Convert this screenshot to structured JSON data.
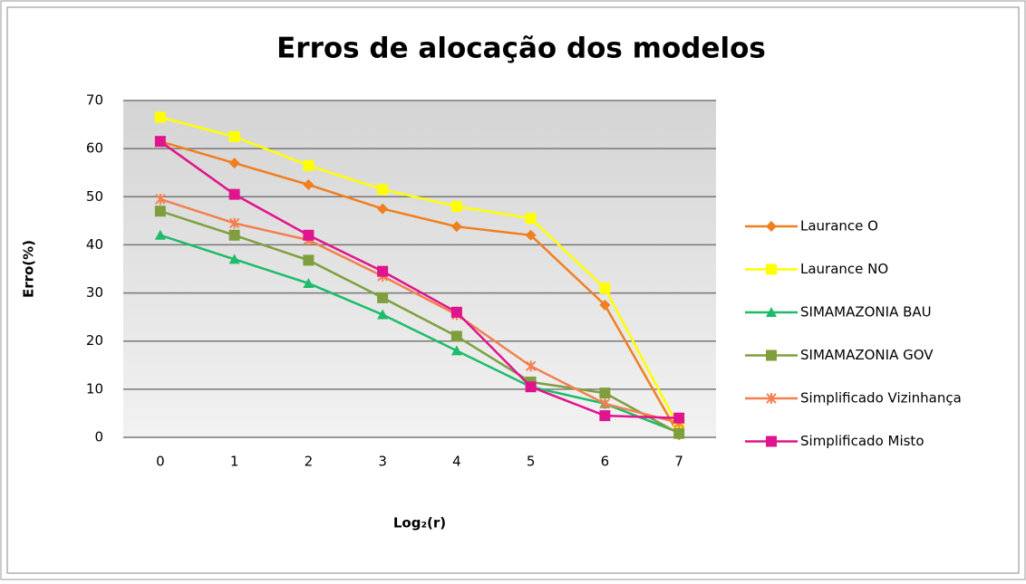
{
  "chart_data": {
    "type": "line",
    "title": "Erros de alocação dos modelos",
    "x_label": "Log₂(r)",
    "y_label": "Erro(%)",
    "categories": [
      "0",
      "1",
      "2",
      "3",
      "4",
      "5",
      "6",
      "7"
    ],
    "series": [
      {
        "name": "Laurance O",
        "color": "#f07f1f",
        "marker": "diamond",
        "values": [
          61.5,
          57,
          52.5,
          47.5,
          43.8,
          42,
          27.5,
          0.5
        ]
      },
      {
        "name": "Laurance NO",
        "color": "#ffff00",
        "marker": "square",
        "values": [
          66.5,
          62.5,
          56.5,
          51.5,
          48,
          45.5,
          31,
          2
        ]
      },
      {
        "name": "SIMAMAZONIA BAU",
        "color": "#1dbb6a",
        "marker": "triangle",
        "values": [
          42,
          37,
          32,
          25.5,
          18,
          10.5,
          7,
          1
        ]
      },
      {
        "name": "SIMAMAZONIA GOV",
        "color": "#7f9f3f",
        "marker": "square",
        "values": [
          47,
          42,
          36.8,
          29,
          21,
          11.5,
          9.2,
          0.8
        ]
      },
      {
        "name": "Simplificado Vizinhança",
        "color": "#f47f4f",
        "marker": "star",
        "values": [
          49.5,
          44.5,
          41,
          33.5,
          25.5,
          14.8,
          7,
          3
        ]
      },
      {
        "name": "Simplificado Misto",
        "color": "#e0148c",
        "marker": "square",
        "values": [
          61.5,
          50.5,
          42,
          34.5,
          26,
          10.5,
          4.5,
          4
        ]
      }
    ],
    "ylim": [
      0,
      70
    ],
    "yticks": [
      0,
      10,
      20,
      30,
      40,
      50,
      60,
      70
    ],
    "grid": true,
    "legend": "right"
  }
}
